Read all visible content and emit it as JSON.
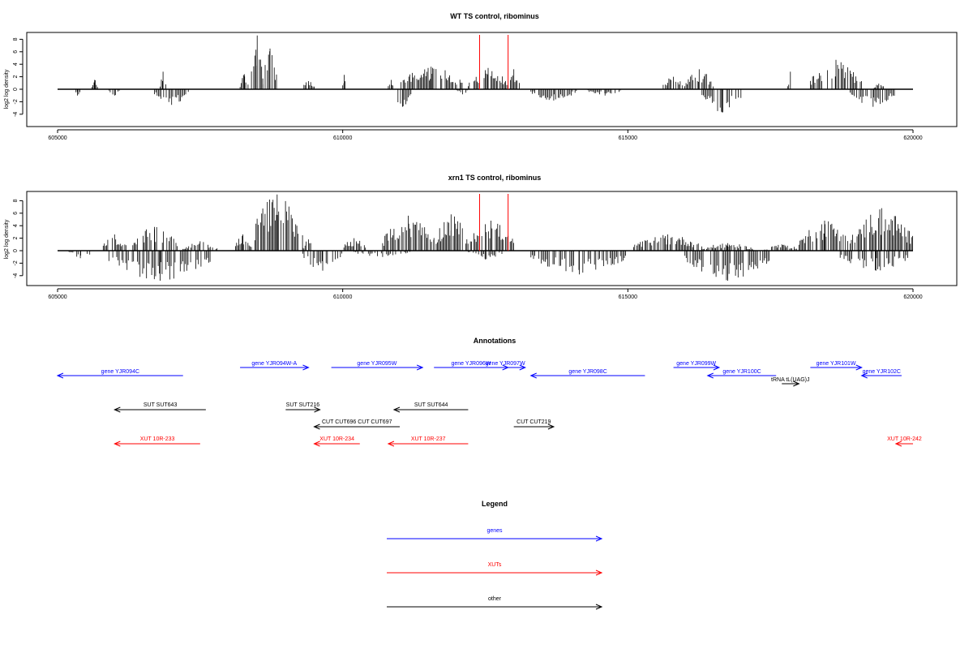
{
  "chart_data": [
    {
      "type": "bar",
      "title": "WT TS control, ribominus",
      "ylabel": "log2 log density",
      "xlim": [
        605000,
        620000
      ],
      "ylim": [
        -5,
        9
      ],
      "x_ticks": [
        605000,
        610000,
        615000,
        620000
      ],
      "y_ticks": [
        -4,
        -2,
        0,
        2,
        4,
        6,
        8
      ],
      "grid": false,
      "reference_color": "#ff0000",
      "reference_lines": [
        612400,
        612900
      ],
      "pos_clusters": [
        {
          "start": 605600,
          "end": 605700,
          "max": 1.5
        },
        {
          "start": 606800,
          "end": 606900,
          "max": 2.8
        },
        {
          "start": 608200,
          "end": 608350,
          "max": 2.4
        },
        {
          "start": 608400,
          "end": 608600,
          "max": 8.6
        },
        {
          "start": 608600,
          "end": 608850,
          "max": 6.5
        },
        {
          "start": 609300,
          "end": 609500,
          "max": 1.3
        },
        {
          "start": 610000,
          "end": 610050,
          "max": 2.3
        },
        {
          "start": 610800,
          "end": 610900,
          "max": 1.5
        },
        {
          "start": 611000,
          "end": 612100,
          "max": 3.6
        },
        {
          "start": 612200,
          "end": 612900,
          "max": 3.4
        },
        {
          "start": 612900,
          "end": 613100,
          "max": 3.2
        },
        {
          "start": 615600,
          "end": 616000,
          "max": 2.0
        },
        {
          "start": 616000,
          "end": 616500,
          "max": 3.2
        },
        {
          "start": 617800,
          "end": 617900,
          "max": 2.8
        },
        {
          "start": 618200,
          "end": 619100,
          "max": 4.7
        },
        {
          "start": 619300,
          "end": 619500,
          "max": 0.9
        }
      ],
      "neg_clusters": [
        {
          "start": 605300,
          "end": 605400,
          "min": -1.0
        },
        {
          "start": 605900,
          "end": 606100,
          "min": -1.0
        },
        {
          "start": 606700,
          "end": 607300,
          "min": -2.5
        },
        {
          "start": 610900,
          "end": 611200,
          "min": -2.8
        },
        {
          "start": 612000,
          "end": 612200,
          "min": -0.8
        },
        {
          "start": 613300,
          "end": 614100,
          "min": -1.8
        },
        {
          "start": 614300,
          "end": 614900,
          "min": -1.0
        },
        {
          "start": 616300,
          "end": 617000,
          "min": -3.7
        },
        {
          "start": 618900,
          "end": 619700,
          "min": -2.8
        }
      ]
    },
    {
      "type": "bar",
      "title": "xrn1 TS control, ribominus",
      "ylabel": "log2 log density",
      "xlim": [
        605000,
        620000
      ],
      "ylim": [
        -5,
        9
      ],
      "x_ticks": [
        605000,
        610000,
        615000,
        620000
      ],
      "y_ticks": [
        -4,
        -2,
        0,
        2,
        4,
        6,
        8
      ],
      "grid": false,
      "reference_color": "#ff0000",
      "reference_lines": [
        612400,
        612900
      ],
      "pos_clusters": [
        {
          "start": 605800,
          "end": 606200,
          "max": 2.6
        },
        {
          "start": 606300,
          "end": 607100,
          "max": 3.8
        },
        {
          "start": 607200,
          "end": 607800,
          "max": 1.5
        },
        {
          "start": 608100,
          "end": 608400,
          "max": 2.6
        },
        {
          "start": 608400,
          "end": 609300,
          "max": 9.0
        },
        {
          "start": 609300,
          "end": 609500,
          "max": 1.8
        },
        {
          "start": 610000,
          "end": 610400,
          "max": 2.0
        },
        {
          "start": 610700,
          "end": 611600,
          "max": 5.6
        },
        {
          "start": 611600,
          "end": 612200,
          "max": 5.8
        },
        {
          "start": 612200,
          "end": 613000,
          "max": 4.8
        },
        {
          "start": 615100,
          "end": 616300,
          "max": 2.6
        },
        {
          "start": 616300,
          "end": 617200,
          "max": 1.2
        },
        {
          "start": 617400,
          "end": 618000,
          "max": 1.0
        },
        {
          "start": 618000,
          "end": 618900,
          "max": 4.8
        },
        {
          "start": 618900,
          "end": 620000,
          "max": 6.8
        }
      ],
      "neg_clusters": [
        {
          "start": 605200,
          "end": 605600,
          "min": -1.2
        },
        {
          "start": 605900,
          "end": 607700,
          "min": -4.8
        },
        {
          "start": 609300,
          "end": 610000,
          "min": -3.2
        },
        {
          "start": 610200,
          "end": 611200,
          "min": -1.0
        },
        {
          "start": 612200,
          "end": 612800,
          "min": -1.4
        },
        {
          "start": 613300,
          "end": 615000,
          "min": -3.8
        },
        {
          "start": 616000,
          "end": 617500,
          "min": -4.8
        },
        {
          "start": 618700,
          "end": 620000,
          "min": -3.2
        }
      ]
    }
  ],
  "annotations": {
    "title": "Annotations",
    "colors": {
      "gene": "#0000ff",
      "xut": "#ff0000",
      "other": "#000000"
    },
    "items": [
      {
        "label": "gene YJR094C",
        "kind": "gene",
        "dir": "left",
        "start": 605000,
        "end": 607200,
        "row": 1
      },
      {
        "label": "gene YJR094W-A",
        "kind": "gene",
        "dir": "right",
        "start": 608200,
        "end": 609400,
        "row": 0
      },
      {
        "label": "gene YJR095W",
        "kind": "gene",
        "dir": "right",
        "start": 609800,
        "end": 611400,
        "row": 0
      },
      {
        "label": "gene YJR096W",
        "kind": "gene",
        "dir": "right",
        "start": 611600,
        "end": 612900,
        "row": 0
      },
      {
        "label": "gene YJR097W",
        "kind": "gene",
        "dir": "right",
        "start": 612500,
        "end": 613200,
        "row": 0
      },
      {
        "label": "gene YJR098C",
        "kind": "gene",
        "dir": "left",
        "start": 613300,
        "end": 615300,
        "row": 1
      },
      {
        "label": "gene YJR099W",
        "kind": "gene",
        "dir": "right",
        "start": 615800,
        "end": 616600,
        "row": 0
      },
      {
        "label": "gene YJR100C",
        "kind": "gene",
        "dir": "left",
        "start": 616400,
        "end": 617600,
        "row": 1
      },
      {
        "label": "gene YJR101W",
        "kind": "gene",
        "dir": "right",
        "start": 618200,
        "end": 619100,
        "row": 0
      },
      {
        "label": "gene YJR102C",
        "kind": "gene",
        "dir": "left",
        "start": 619100,
        "end": 619800,
        "row": 1
      },
      {
        "label": "tRNA tL(UAG)J",
        "kind": "other",
        "dir": "right",
        "start": 617700,
        "end": 618000,
        "row": 2
      },
      {
        "label": "SUT SUT643",
        "kind": "other",
        "dir": "left",
        "start": 606000,
        "end": 607600,
        "row": 3
      },
      {
        "label": "SUT SUT216",
        "kind": "other",
        "dir": "right",
        "start": 609000,
        "end": 609600,
        "row": 3
      },
      {
        "label": "SUT SUT644",
        "kind": "other",
        "dir": "left",
        "start": 610900,
        "end": 612200,
        "row": 3
      },
      {
        "label": "CUT CUT696 CUT CUT697",
        "kind": "other",
        "dir": "left",
        "start": 609500,
        "end": 611000,
        "row": 4
      },
      {
        "label": "CUT CUT219",
        "kind": "other",
        "dir": "right",
        "start": 613000,
        "end": 613700,
        "row": 4
      },
      {
        "label": "XUT 10R-233",
        "kind": "xut",
        "dir": "left",
        "start": 606000,
        "end": 607500,
        "row": 5
      },
      {
        "label": "XUT 10R-234",
        "kind": "xut",
        "dir": "left",
        "start": 609500,
        "end": 610300,
        "row": 5
      },
      {
        "label": "XUT 10R-237",
        "kind": "xut",
        "dir": "left",
        "start": 610800,
        "end": 612200,
        "row": 5
      },
      {
        "label": "XUT 10R-242",
        "kind": "xut",
        "dir": "left",
        "start": 619700,
        "end": 620000,
        "row": 5
      }
    ]
  },
  "legend": {
    "title": "Legend",
    "entries": [
      {
        "label": "genes",
        "color": "#0000ff"
      },
      {
        "label": "XUTs",
        "color": "#ff0000"
      },
      {
        "label": "other",
        "color": "#000000"
      }
    ]
  }
}
